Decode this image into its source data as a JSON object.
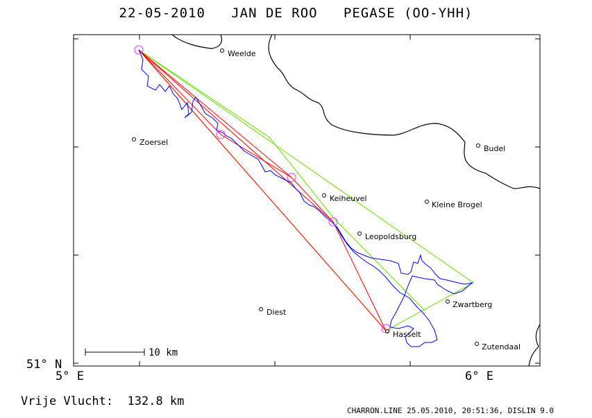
{
  "title": "22-05-2010   JAN DE ROO   PEGASE (OO-YHH)",
  "axes": {
    "lat_label": "51° N",
    "lon_labels": [
      "5° E",
      "6° E"
    ]
  },
  "scale_bar": {
    "label": "10 km"
  },
  "cities": [
    {
      "name": "Weelde"
    },
    {
      "name": "Zoersel"
    },
    {
      "name": "Budel"
    },
    {
      "name": "Keiheuvel"
    },
    {
      "name": "Kleine Brogel"
    },
    {
      "name": "Leopoldsburg"
    },
    {
      "name": "Zwartberg"
    },
    {
      "name": "Diest"
    },
    {
      "name": "Hasselt"
    },
    {
      "name": "Zutendaal"
    }
  ],
  "flight_distance": "Vrije Vlucht:  132.8 km",
  "footer": "CHARRON.LINE 25.05.2010, 20:51:36, DISLIN 9.0",
  "colors": {
    "track": "#0000ff",
    "triangle_green": "#66dd00",
    "triangle_red": "#ff0000",
    "turnpoint": "#ff33ff",
    "border": "#000000"
  }
}
